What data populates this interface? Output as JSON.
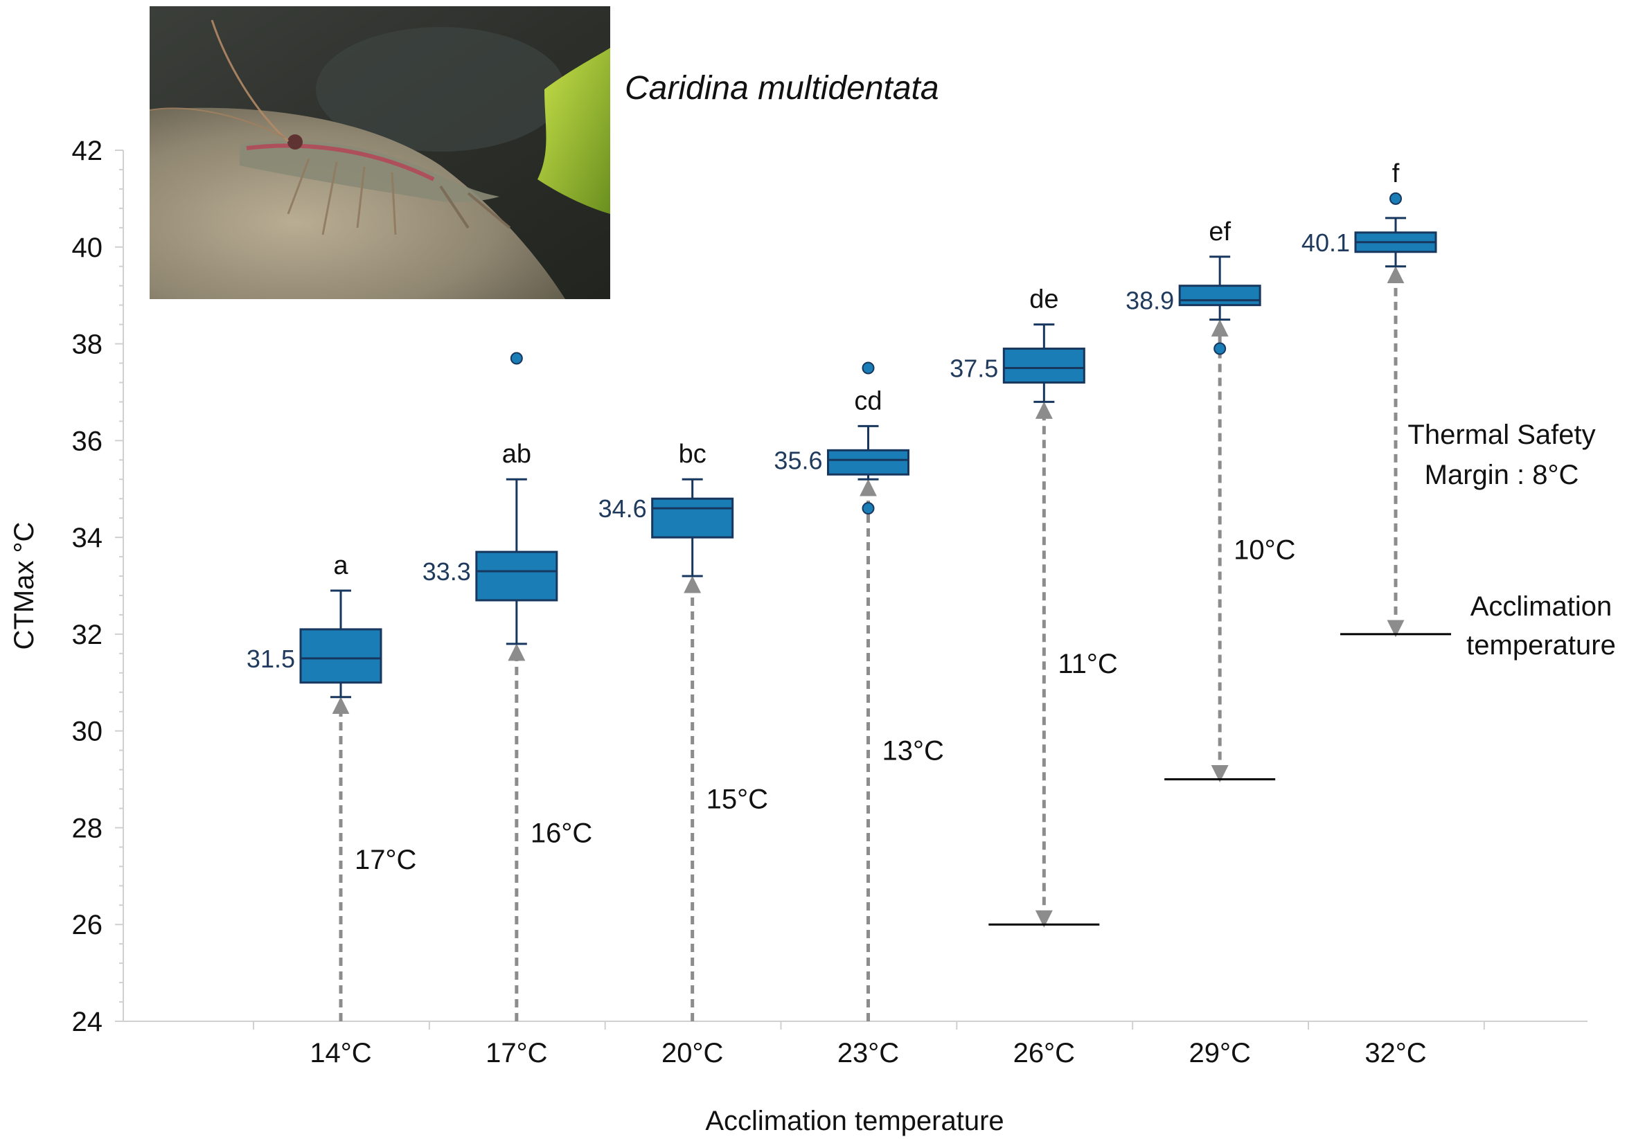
{
  "species_name": "Caridina multidentata",
  "photo_icon": "shrimp-photo",
  "colors": {
    "box_fill": "#1a7db5",
    "box_stroke": "#17375e",
    "arrow": "#8c8c8c",
    "median_label": "#1f3a5c"
  },
  "chart_data": {
    "type": "box",
    "xlabel": "Acclimation temperature",
    "ylabel": "CTMax °C",
    "ylim": [
      24,
      42
    ],
    "yticks": [
      24,
      26,
      28,
      30,
      32,
      34,
      36,
      38,
      40,
      42
    ],
    "categories": [
      "14°C",
      "17°C",
      "20°C",
      "23°C",
      "26°C",
      "29°C",
      "32°C"
    ],
    "boxes": [
      {
        "acclimation": 14,
        "min": 30.7,
        "q1": 31.0,
        "median": 31.5,
        "q3": 32.1,
        "max": 32.9,
        "outliers": [],
        "median_label": "31.5",
        "letter": "a",
        "tsm": "17°C"
      },
      {
        "acclimation": 17,
        "min": 31.8,
        "q1": 32.7,
        "median": 33.3,
        "q3": 33.7,
        "max": 35.2,
        "outliers": [
          37.7
        ],
        "median_label": "33.3",
        "letter": "ab",
        "tsm": "16°C"
      },
      {
        "acclimation": 20,
        "min": 33.2,
        "q1": 34.0,
        "median": 34.6,
        "q3": 34.8,
        "max": 35.2,
        "outliers": [],
        "median_label": "34.6",
        "letter": "bc",
        "tsm": "15°C"
      },
      {
        "acclimation": 23,
        "min": 35.2,
        "q1": 35.3,
        "median": 35.6,
        "q3": 35.8,
        "max": 36.3,
        "outliers": [
          37.5,
          34.6
        ],
        "median_label": "35.6",
        "letter": "cd",
        "tsm": "13°C"
      },
      {
        "acclimation": 26,
        "min": 36.8,
        "q1": 37.2,
        "median": 37.5,
        "q3": 37.9,
        "max": 38.4,
        "outliers": [],
        "median_label": "37.5",
        "letter": "de",
        "tsm": "11°C"
      },
      {
        "acclimation": 29,
        "min": 38.5,
        "q1": 38.8,
        "median": 38.9,
        "q3": 39.2,
        "max": 39.8,
        "outliers": [
          37.9
        ],
        "median_label": "38.9",
        "letter": "ef",
        "tsm": "10°C"
      },
      {
        "acclimation": 32,
        "min": 39.6,
        "q1": 39.9,
        "median": 40.1,
        "q3": 40.3,
        "max": 40.6,
        "outliers": [
          41.0
        ],
        "median_label": "40.1",
        "letter": "f",
        "tsm": "8°C"
      }
    ],
    "acclimation_lines": [
      26,
      29,
      32
    ],
    "annotations": {
      "tsm_title_line1": "Thermal Safety",
      "tsm_title_line2": "Margin : 8°C",
      "acclimation_line1": "Acclimation",
      "acclimation_line2": "temperature"
    }
  }
}
